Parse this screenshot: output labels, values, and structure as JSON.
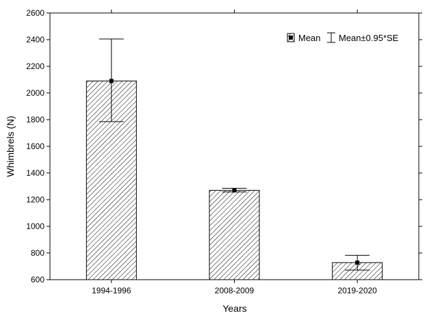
{
  "chart_data": {
    "type": "bar",
    "title": "",
    "xlabel": "Years",
    "ylabel": "Whimbrels (N)",
    "categories": [
      "1994-1996",
      "2008-2009",
      "2019-2020"
    ],
    "series": [
      {
        "name": "Mean",
        "values": [
          2090,
          1270,
          728
        ],
        "error_low": [
          1785,
          1258,
          672
        ],
        "error_high": [
          2405,
          1285,
          783
        ]
      }
    ],
    "ylim": [
      600,
      2600
    ],
    "yticks": [
      600,
      800,
      1000,
      1200,
      1400,
      1600,
      1800,
      2000,
      2200,
      2400,
      2600
    ],
    "legend": {
      "position": "top-right",
      "mean_label": "Mean",
      "error_label": "Mean±0.95*SE"
    },
    "grid": false,
    "bar_fill": "diagonal-hatch",
    "colors": {
      "stroke": "#000000",
      "background": "#ffffff"
    }
  }
}
